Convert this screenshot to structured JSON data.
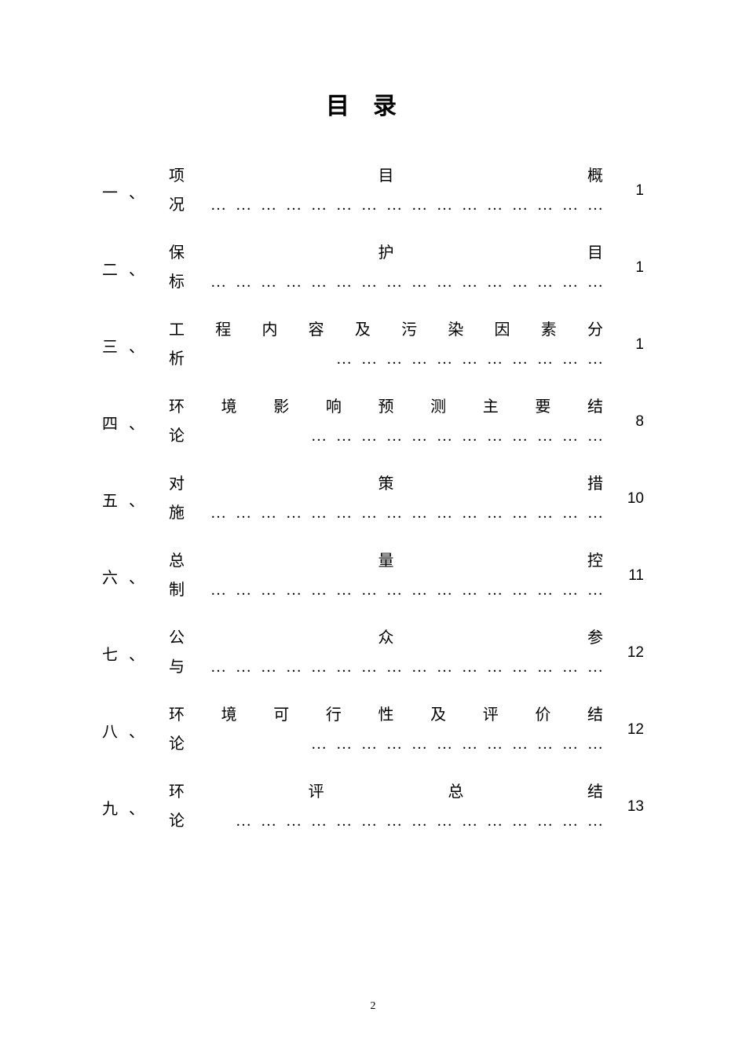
{
  "title": "目录",
  "toc": [
    {
      "num": "一、",
      "text": "项目概况…………………………………………",
      "page": "1"
    },
    {
      "num": "二、",
      "text": "保护目标…………………………………………",
      "page": "1"
    },
    {
      "num": "三、",
      "text": "工程内容及污染因素分析……………………………",
      "page": "1"
    },
    {
      "num": "四、",
      "text": "环境影响预测主要结论………………………………",
      "page": "8"
    },
    {
      "num": "五、",
      "text": "对策措施…………………………………………",
      "page": "10"
    },
    {
      "num": "六、",
      "text": "总量控制…………………………………………",
      "page": "11"
    },
    {
      "num": "七、",
      "text": "公众参与…………………………………………",
      "page": "12"
    },
    {
      "num": "八、",
      "text": "环境可行性及评价结论………………………………",
      "page": "12"
    },
    {
      "num": "九、",
      "text": "环评总结论………………………………………",
      "page": "13"
    }
  ],
  "footerPage": "2",
  "colors": {
    "background": "#ffffff",
    "text": "#000000"
  },
  "typography": {
    "titleFontSize": 30,
    "bodyFontSize": 20,
    "pageNumFontSize": 19,
    "footerFontSize": 14
  }
}
